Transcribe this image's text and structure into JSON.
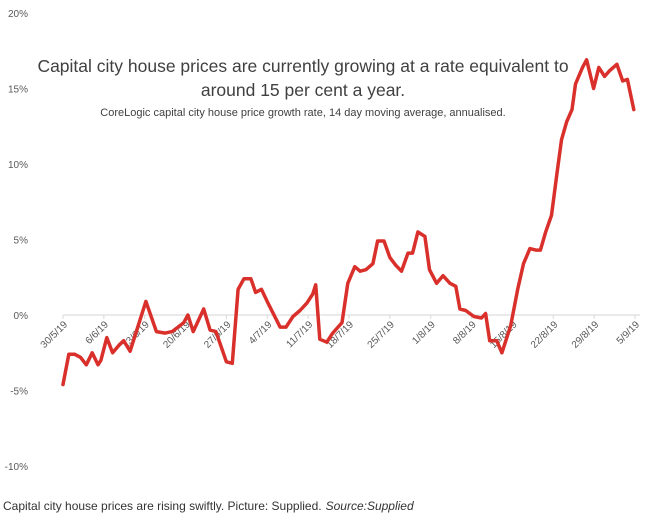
{
  "chart_data": {
    "type": "line",
    "title": "Capital city house prices are currently growing at a rate equivalent to around 15 per cent a year.",
    "title_lines": [
      "Capital city house prices are currently growing at a rate equivalent to",
      "around 15 per cent a year."
    ],
    "subtitle": "CoreLogic capital city house price growth rate, 14 day moving average, annualised.",
    "xlabel": "",
    "ylabel": "",
    "ylim": [
      -10,
      20
    ],
    "yticks": [
      -10,
      -5,
      0,
      5,
      10,
      15,
      20
    ],
    "ytick_labels": [
      "-10%",
      "-5%",
      "0%",
      "5%",
      "10%",
      "15%",
      "20%"
    ],
    "xlim_days": [
      0,
      98
    ],
    "xtick_days": [
      0,
      7,
      14,
      21,
      28,
      35,
      42,
      49,
      56,
      63,
      70,
      77,
      84,
      91,
      98
    ],
    "xtick_labels": [
      "30/5/19",
      "6/6/19",
      "13/6/19",
      "20/6/19",
      "27/6/19",
      "4/7/19",
      "11/7/19",
      "18/7/19",
      "25/7/19",
      "1/8/19",
      "8/8/19",
      "15/8/19",
      "22/8/19",
      "29/8/19",
      "5/9/19"
    ],
    "grid": false,
    "series": [
      {
        "name": "Growth rate",
        "color": "#d9302b",
        "x_days": [
          0,
          1,
          2,
          3,
          4,
          5,
          6,
          6.5,
          7.5,
          8.5,
          9.6,
          10.4,
          11.5,
          14.2,
          16,
          17.5,
          18.7,
          19.7,
          20.7,
          21.4,
          22.3,
          24.1,
          25.2,
          26.2,
          28,
          29,
          30,
          31,
          32.2,
          33,
          34,
          35.1,
          37.2,
          38.2,
          39.4,
          40.6,
          41.8,
          42.8,
          43.3,
          44,
          45.2,
          46.2,
          47.8,
          48.8,
          50,
          50.9,
          51.9,
          53.1,
          53.9,
          55,
          56,
          57,
          58,
          59.1,
          59.9,
          60.8,
          62,
          62.8,
          64,
          65.1,
          66.3,
          67.3,
          68,
          69,
          70.4,
          71.7,
          72.4,
          73.1,
          74.3,
          75.2,
          76.7,
          77.9,
          78.9,
          80,
          81,
          81.8,
          82.7,
          83.7,
          84.6,
          85.4,
          86.3,
          87.2,
          87.8,
          89,
          89.7,
          90.9,
          91.8,
          92.8,
          93.7,
          94.9,
          95.9,
          96.7,
          97.8
        ],
        "values": [
          -4.6,
          -2.6,
          -2.6,
          -2.8,
          -3.3,
          -2.5,
          -3.3,
          -3.0,
          -1.5,
          -2.5,
          -2.0,
          -1.7,
          -2.4,
          0.9,
          -1.1,
          -1.2,
          -1.1,
          -0.8,
          -0.5,
          0,
          -1.1,
          0.4,
          -1.0,
          -1.1,
          -3.1,
          -3.2,
          1.7,
          2.4,
          2.4,
          1.5,
          1.7,
          0.8,
          -0.8,
          -0.8,
          -0.1,
          0.3,
          0.8,
          1.4,
          2.0,
          -1.6,
          -1.8,
          -1.2,
          -0.5,
          2.1,
          3.2,
          2.9,
          3.0,
          3.4,
          4.9,
          4.9,
          3.8,
          3.3,
          2.9,
          4.1,
          4.1,
          5.5,
          5.2,
          3.0,
          2.1,
          2.6,
          2.1,
          1.9,
          0.4,
          0.3,
          -0.1,
          -0.2,
          0.1,
          -1.7,
          -1.7,
          -2.5,
          -0.7,
          1.7,
          3.4,
          4.4,
          4.3,
          4.3,
          5.5,
          6.6,
          9.3,
          11.6,
          12.8,
          13.6,
          15.3,
          16.4,
          16.9,
          15.0,
          16.4,
          15.8,
          16.2,
          16.6,
          15.5,
          15.6,
          13.6
        ]
      }
    ]
  },
  "caption": {
    "text": "Capital city house prices are rising swiftly. Picture: Supplied.",
    "source": "Source:Supplied"
  }
}
